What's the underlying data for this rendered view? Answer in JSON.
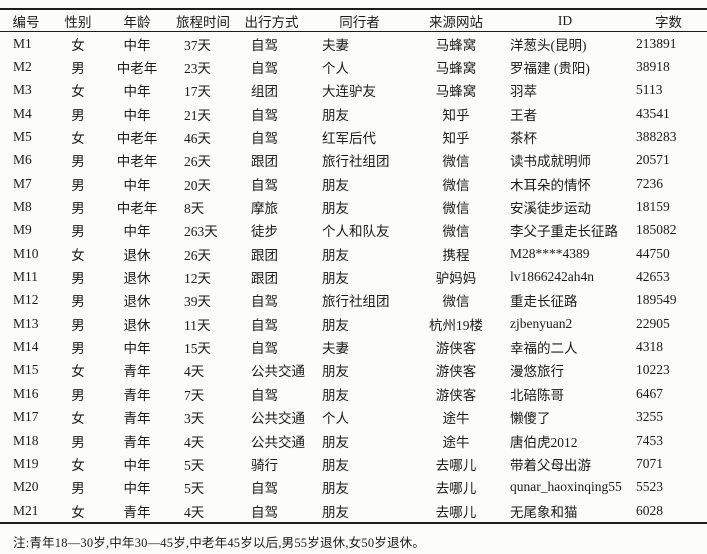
{
  "table": {
    "headers": [
      "编号",
      "性别",
      "年龄",
      "旅程时间",
      "出行方式",
      "同行者",
      "来源网站",
      "ID",
      "字数"
    ],
    "rows": [
      [
        "M1",
        "女",
        "中年",
        "37天",
        "自驾",
        "夫妻",
        "马蜂窝",
        "洋葱头(昆明)",
        "213891"
      ],
      [
        "M2",
        "男",
        "中老年",
        "23天",
        "自驾",
        "个人",
        "马蜂窝",
        "罗福建 (贵阳)",
        "38918"
      ],
      [
        "M3",
        "女",
        "中年",
        "17天",
        "组团",
        "大连驴友",
        "马蜂窝",
        "羽萃",
        "5113"
      ],
      [
        "M4",
        "男",
        "中年",
        "21天",
        "自驾",
        "朋友",
        "知乎",
        "王者",
        "43541"
      ],
      [
        "M5",
        "女",
        "中老年",
        "46天",
        "自驾",
        "红军后代",
        "知乎",
        "茶杯",
        "388283"
      ],
      [
        "M6",
        "男",
        "中老年",
        "26天",
        "跟团",
        "旅行社组团",
        "微信",
        "读书成就明师",
        "20571"
      ],
      [
        "M7",
        "男",
        "中年",
        "20天",
        "自驾",
        "朋友",
        "微信",
        "木耳朵的情怀",
        "7236"
      ],
      [
        "M8",
        "男",
        "中老年",
        "8天",
        "摩旅",
        "朋友",
        "微信",
        "安溪徒步运动",
        "18159"
      ],
      [
        "M9",
        "男",
        "中年",
        "263天",
        "徒步",
        "个人和队友",
        "微信",
        "李父子重走长征路",
        "185082"
      ],
      [
        "M10",
        "女",
        "退休",
        "26天",
        "跟团",
        "朋友",
        "携程",
        "M28****4389",
        "44750"
      ],
      [
        "M11",
        "男",
        "退休",
        "12天",
        "跟团",
        "朋友",
        "驴妈妈",
        "lv1866242ah4n",
        "42653"
      ],
      [
        "M12",
        "男",
        "退休",
        "39天",
        "自驾",
        "旅行社组团",
        "微信",
        "重走长征路",
        "189549"
      ],
      [
        "M13",
        "男",
        "退休",
        "11天",
        "自驾",
        "朋友",
        "杭州19楼",
        "zjbenyuan2",
        "22905"
      ],
      [
        "M14",
        "男",
        "中年",
        "15天",
        "自驾",
        "夫妻",
        "游侠客",
        "幸福的二人",
        "4318"
      ],
      [
        "M15",
        "女",
        "青年",
        "4天",
        "公共交通",
        "朋友",
        "游侠客",
        "漫悠旅行",
        "10223"
      ],
      [
        "M16",
        "男",
        "青年",
        "7天",
        "自驾",
        "朋友",
        "游侠客",
        "北碚陈哥",
        "6467"
      ],
      [
        "M17",
        "女",
        "青年",
        "3天",
        "公共交通",
        "个人",
        "途牛",
        "懒傻了",
        "3255"
      ],
      [
        "M18",
        "男",
        "青年",
        "4天",
        "公共交通",
        "朋友",
        "途牛",
        "唐伯虎2012",
        "7453"
      ],
      [
        "M19",
        "女",
        "中年",
        "5天",
        "骑行",
        "朋友",
        "去哪儿",
        "带着父母出游",
        "7071"
      ],
      [
        "M20",
        "男",
        "中年",
        "5天",
        "自驾",
        "朋友",
        "去哪儿",
        "qunar_haoxinqing55",
        "5523"
      ],
      [
        "M21",
        "女",
        "青年",
        "4天",
        "自驾",
        "朋友",
        "去哪儿",
        "无尾象和猫",
        "6028"
      ]
    ],
    "footnote": "注:青年18—30岁,中年30—45岁,中老年45岁以后,男55岁退休,女50岁退休。"
  }
}
